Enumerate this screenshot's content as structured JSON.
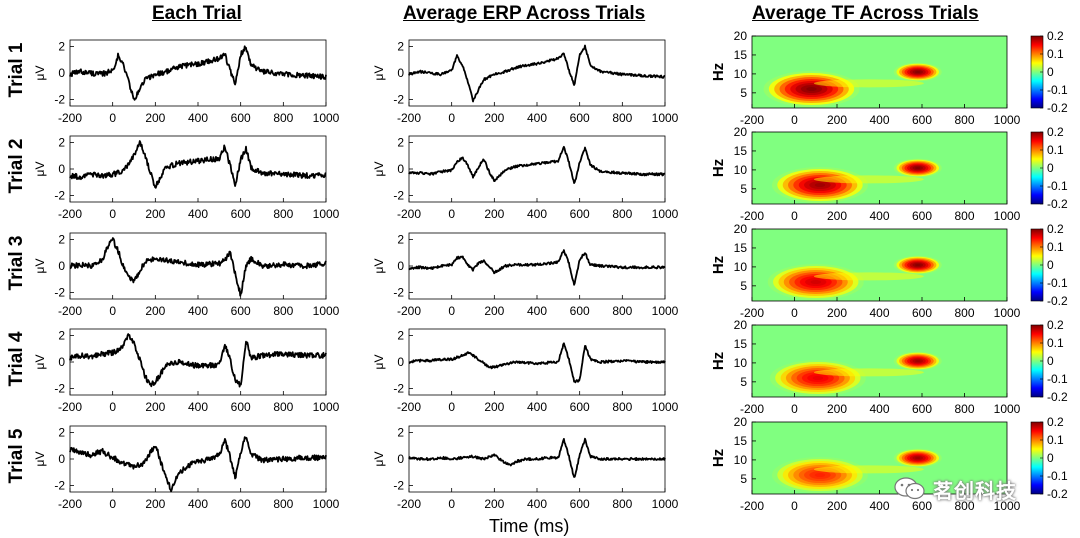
{
  "titles": {
    "each_trial": "Each Trial",
    "avg_erp": "Average ERP Across Trials",
    "avg_tf": "Average TF Across Trials"
  },
  "x_axis_label": "Time (ms)",
  "watermark": "茗创科技",
  "colors": {
    "trace": "#000000",
    "tf_background": "#80ff80",
    "colormap": [
      "#00007f",
      "#0000ff",
      "#007fff",
      "#00ffff",
      "#7fff7f",
      "#ffff00",
      "#ff7f00",
      "#ff0000",
      "#7f0000"
    ]
  },
  "chart_data": [
    {
      "type": "line",
      "title": "Each Trial",
      "row_labels": [
        "Trial 1",
        "Trial 2",
        "Trial 3",
        "Trial 4",
        "Trial 5"
      ],
      "ylabel": "μV",
      "xlabel": "Time (ms)",
      "xlim": [
        -200,
        1000
      ],
      "ylim": [
        -2.5,
        2.5
      ],
      "xticks": [
        "-200",
        "0",
        "200",
        "400",
        "600",
        "800",
        "1000"
      ],
      "yticks": [
        "2",
        "0",
        "-2"
      ],
      "series": [
        {
          "name": "Trial 1",
          "x": [
            -200,
            -150,
            -100,
            -50,
            0,
            25,
            50,
            75,
            100,
            125,
            150,
            175,
            200,
            250,
            300,
            350,
            400,
            450,
            500,
            525,
            550,
            575,
            600,
            625,
            650,
            700,
            800,
            900,
            1000
          ],
          "values": [
            -0.1,
            0.1,
            0.0,
            -0.1,
            0.2,
            1.3,
            0.6,
            -0.6,
            -2.1,
            -1.3,
            -0.5,
            -0.3,
            -0.1,
            0.1,
            0.4,
            0.6,
            0.7,
            0.9,
            1.1,
            1.5,
            0.2,
            -0.9,
            1.4,
            2.0,
            0.6,
            0.1,
            -0.1,
            -0.2,
            -0.3
          ]
        },
        {
          "name": "Trial 2",
          "x": [
            -200,
            -150,
            -100,
            -50,
            0,
            50,
            100,
            125,
            150,
            175,
            200,
            225,
            250,
            300,
            400,
            500,
            525,
            550,
            575,
            600,
            625,
            650,
            700,
            800,
            900,
            1000
          ],
          "values": [
            -0.5,
            -0.6,
            -0.4,
            -0.5,
            -0.4,
            -0.2,
            1.0,
            2.0,
            1.2,
            -0.2,
            -1.4,
            -0.6,
            0.1,
            0.4,
            0.6,
            0.8,
            1.7,
            0.3,
            -1.2,
            0.7,
            1.5,
            0.1,
            -0.3,
            -0.4,
            -0.5,
            -0.5
          ]
        },
        {
          "name": "Trial 3",
          "x": [
            -200,
            -150,
            -100,
            -50,
            -25,
            0,
            25,
            50,
            75,
            100,
            150,
            200,
            300,
            400,
            500,
            525,
            550,
            575,
            600,
            625,
            650,
            700,
            800,
            900,
            1000
          ],
          "values": [
            0.0,
            0.1,
            0.0,
            0.4,
            1.4,
            2.0,
            1.2,
            0.0,
            -0.9,
            -1.2,
            0.3,
            0.6,
            0.3,
            0.1,
            0.2,
            0.4,
            1.0,
            -0.6,
            -2.2,
            0.0,
            0.6,
            0.0,
            0.1,
            0.0,
            0.2
          ]
        },
        {
          "name": "Trial 4",
          "x": [
            -200,
            -150,
            -100,
            -50,
            0,
            50,
            75,
            100,
            125,
            150,
            175,
            200,
            250,
            300,
            400,
            500,
            525,
            550,
            575,
            600,
            625,
            650,
            700,
            800,
            900,
            1000
          ],
          "values": [
            0.3,
            0.5,
            0.4,
            0.6,
            0.7,
            1.2,
            2.1,
            1.4,
            0.3,
            -1.0,
            -1.8,
            -1.5,
            -0.3,
            0.0,
            -0.3,
            -0.2,
            1.3,
            0.2,
            -1.4,
            -1.8,
            1.6,
            0.3,
            0.5,
            0.6,
            0.5,
            0.5
          ]
        },
        {
          "name": "Trial 5",
          "x": [
            -200,
            -150,
            -100,
            -50,
            0,
            50,
            100,
            150,
            200,
            250,
            275,
            300,
            350,
            400,
            450,
            500,
            525,
            550,
            575,
            600,
            625,
            650,
            700,
            800,
            900,
            1000
          ],
          "values": [
            0.7,
            0.5,
            0.3,
            0.6,
            0.1,
            -0.3,
            -0.6,
            -0.3,
            1.1,
            -1.5,
            -2.3,
            -1.3,
            -0.5,
            -0.2,
            0.0,
            0.3,
            1.5,
            0.2,
            -1.4,
            0.5,
            1.8,
            0.4,
            -0.1,
            0.0,
            0.1,
            0.1
          ]
        }
      ]
    },
    {
      "type": "line",
      "title": "Average ERP Across Trials",
      "row_labels": [
        "Trial 1",
        "Trial 2",
        "Trial 3",
        "Trial 4",
        "Trial 5"
      ],
      "ylabel": "μV",
      "xlabel": "Time (ms)",
      "xlim": [
        -200,
        1000
      ],
      "ylim": [
        -2.5,
        2.5
      ],
      "xticks": [
        "-200",
        "0",
        "200",
        "400",
        "600",
        "800",
        "1000"
      ],
      "yticks": [
        "2",
        "0",
        "-2"
      ],
      "series": [
        {
          "name": "Trial 1",
          "x": [
            -200,
            -150,
            -100,
            -50,
            0,
            25,
            50,
            75,
            100,
            125,
            150,
            175,
            200,
            250,
            300,
            350,
            400,
            450,
            500,
            525,
            550,
            575,
            600,
            625,
            650,
            700,
            800,
            900,
            1000
          ],
          "values": [
            -0.1,
            0.1,
            0.0,
            -0.1,
            0.2,
            1.3,
            0.6,
            -0.6,
            -2.1,
            -1.3,
            -0.5,
            -0.3,
            -0.1,
            0.1,
            0.4,
            0.6,
            0.7,
            0.9,
            1.1,
            1.5,
            0.2,
            -0.9,
            1.4,
            2.0,
            0.6,
            0.1,
            -0.1,
            -0.2,
            -0.3
          ]
        },
        {
          "name": "Trial 2",
          "x": [
            -200,
            -150,
            -100,
            -50,
            0,
            25,
            50,
            75,
            100,
            125,
            150,
            175,
            200,
            250,
            300,
            400,
            500,
            525,
            550,
            575,
            600,
            625,
            650,
            700,
            800,
            900,
            1000
          ],
          "values": [
            -0.3,
            -0.3,
            -0.4,
            -0.2,
            -0.1,
            0.5,
            0.9,
            0.3,
            -0.6,
            0.1,
            0.8,
            -0.2,
            -0.9,
            -0.1,
            0.2,
            0.4,
            0.6,
            1.7,
            0.5,
            -1.2,
            0.5,
            1.6,
            0.3,
            -0.2,
            -0.3,
            -0.4,
            -0.4
          ]
        },
        {
          "name": "Trial 3",
          "x": [
            -200,
            -150,
            -100,
            -50,
            0,
            25,
            50,
            75,
            100,
            125,
            150,
            175,
            200,
            250,
            300,
            400,
            500,
            525,
            550,
            575,
            600,
            625,
            650,
            700,
            800,
            900,
            1000
          ],
          "values": [
            -0.2,
            -0.1,
            -0.2,
            0.0,
            0.1,
            0.6,
            0.7,
            0.1,
            -0.3,
            0.2,
            0.4,
            0.0,
            -0.5,
            0.0,
            0.1,
            0.1,
            0.3,
            1.2,
            0.2,
            -1.5,
            0.5,
            1.0,
            0.1,
            0.0,
            -0.1,
            -0.1,
            -0.1
          ]
        },
        {
          "name": "Trial 4",
          "x": [
            -200,
            -150,
            -100,
            -50,
            0,
            50,
            75,
            100,
            125,
            150,
            175,
            200,
            250,
            300,
            400,
            500,
            525,
            550,
            575,
            600,
            625,
            650,
            700,
            800,
            900,
            1000
          ],
          "values": [
            0.0,
            0.1,
            0.1,
            0.2,
            0.2,
            0.5,
            0.7,
            0.5,
            0.2,
            -0.1,
            -0.4,
            -0.4,
            -0.2,
            0.0,
            -0.1,
            0.0,
            1.4,
            0.2,
            -1.5,
            -1.4,
            1.3,
            0.2,
            0.0,
            0.1,
            0.0,
            0.0
          ]
        },
        {
          "name": "Trial 5",
          "x": [
            -200,
            -150,
            -100,
            -50,
            0,
            50,
            100,
            150,
            200,
            250,
            275,
            300,
            350,
            400,
            450,
            500,
            525,
            550,
            575,
            600,
            625,
            650,
            700,
            800,
            900,
            1000
          ],
          "values": [
            0.1,
            0.0,
            0.0,
            0.1,
            0.0,
            0.1,
            0.2,
            0.0,
            0.3,
            -0.3,
            -0.5,
            -0.2,
            0.0,
            0.0,
            0.1,
            0.1,
            1.5,
            0.2,
            -1.5,
            0.3,
            1.5,
            0.2,
            0.0,
            0.0,
            0.0,
            0.0
          ]
        }
      ]
    },
    {
      "type": "heatmap",
      "title": "Average TF Across Trials",
      "row_labels": [
        "Trial 1",
        "Trial 2",
        "Trial 3",
        "Trial 4",
        "Trial 5"
      ],
      "ylabel": "Hz",
      "xlabel": "Time (ms)",
      "xlim": [
        -200,
        1000
      ],
      "ylim": [
        1,
        20
      ],
      "xticks": [
        "-200",
        "0",
        "200",
        "400",
        "600",
        "800",
        "1000"
      ],
      "yticks": [
        "20",
        "15",
        "10",
        "5"
      ],
      "colorbar": {
        "ticks": [
          "0.2",
          "0.1",
          "0",
          "-0.1",
          "-0.2"
        ],
        "clim": [
          -0.2,
          0.2
        ]
      },
      "blobs": [
        {
          "name": "Trial 1",
          "early": {
            "time": 80,
            "freq": 6,
            "amplitude": 0.2
          },
          "late": {
            "time": 580,
            "freq": 10.5,
            "amplitude": 0.2
          }
        },
        {
          "name": "Trial 2",
          "early": {
            "time": 120,
            "freq": 6,
            "amplitude": 0.19
          },
          "late": {
            "time": 580,
            "freq": 10.5,
            "amplitude": 0.2
          }
        },
        {
          "name": "Trial 3",
          "early": {
            "time": 100,
            "freq": 6,
            "amplitude": 0.17
          },
          "late": {
            "time": 580,
            "freq": 10.5,
            "amplitude": 0.2
          }
        },
        {
          "name": "Trial 4",
          "early": {
            "time": 110,
            "freq": 6,
            "amplitude": 0.16
          },
          "late": {
            "time": 580,
            "freq": 10.5,
            "amplitude": 0.19
          }
        },
        {
          "name": "Trial 5",
          "early": {
            "time": 120,
            "freq": 6,
            "amplitude": 0.14
          },
          "late": {
            "time": 580,
            "freq": 10.5,
            "amplitude": 0.19
          }
        }
      ]
    }
  ]
}
